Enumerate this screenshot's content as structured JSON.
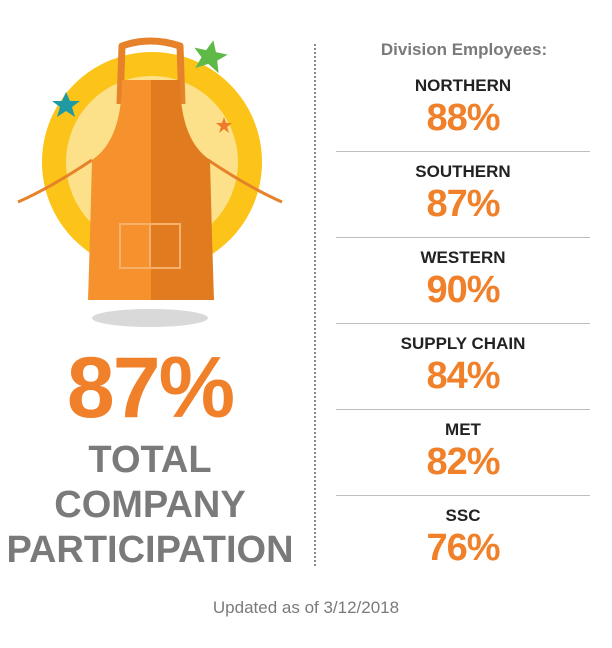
{
  "total": {
    "percent": "87%",
    "label_lines": [
      "TOTAL",
      "COMPANY",
      "PARTICIPATION"
    ]
  },
  "divisions": {
    "heading": "Division Employees:",
    "items": [
      {
        "name": "NORTHERN",
        "value": "88%"
      },
      {
        "name": "SOUTHERN",
        "value": "87%"
      },
      {
        "name": "WESTERN",
        "value": "90%"
      },
      {
        "name": "SUPPLY CHAIN",
        "value": "84%"
      },
      {
        "name": "MET",
        "value": "82%"
      },
      {
        "name": "SSC",
        "value": "76%"
      }
    ]
  },
  "footer": {
    "updated": "Updated as of 3/12/2018"
  },
  "illustration": {
    "icons": [
      "apron-icon",
      "sun-circle-icon",
      "green-star-icon",
      "teal-star-icon",
      "orange-star-icon"
    ],
    "colors": {
      "accent_orange": "#f0812a",
      "sun_yellow": "#fcc419",
      "star_green": "#5fb946",
      "star_teal": "#1f9aa5",
      "label_gray": "#7a7a7a"
    }
  }
}
